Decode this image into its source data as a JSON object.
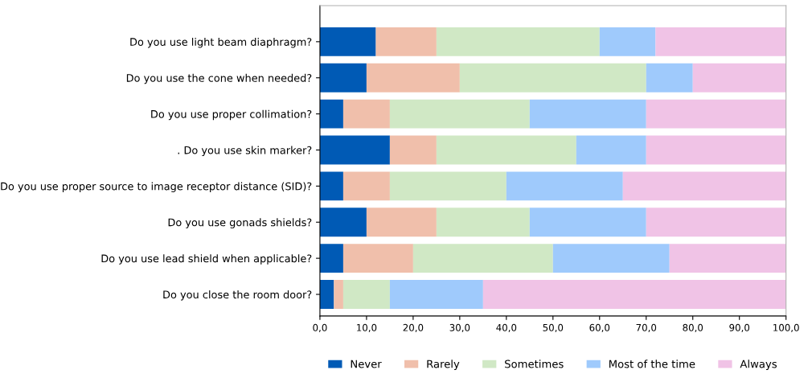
{
  "chart_data": {
    "type": "bar",
    "orientation": "horizontal",
    "stacked": true,
    "categories": [
      "Do you use light beam diaphragm?",
      "Do you use the cone when needed?",
      "Do you use proper collimation?",
      ". Do you use skin marker?",
      "Do you use proper source to image receptor distance (SID)?",
      "Do you use gonads shields?",
      "Do you use lead shield when applicable?",
      "Do you close the room door?"
    ],
    "series": [
      {
        "name": "Never",
        "color": "#005ab5",
        "values": [
          12,
          10,
          5,
          15,
          5,
          10,
          5,
          3
        ]
      },
      {
        "name": "Rarely",
        "color": "#f0bfab",
        "values": [
          13,
          20,
          10,
          10,
          10,
          15,
          15,
          2
        ]
      },
      {
        "name": "Sometimes",
        "color": "#d0e8c5",
        "values": [
          35,
          40,
          30,
          30,
          25,
          20,
          30,
          10
        ]
      },
      {
        "name": "Most of the time",
        "color": "#9fcafc",
        "values": [
          12,
          10,
          25,
          15,
          25,
          25,
          25,
          20
        ]
      },
      {
        "name": "Always",
        "color": "#f0c3e6",
        "values": [
          28,
          20,
          30,
          30,
          35,
          30,
          25,
          65
        ]
      }
    ],
    "xlim": [
      0,
      100
    ],
    "xticks": [
      {
        "value": 0,
        "label": "0,0"
      },
      {
        "value": 10,
        "label": "10,0"
      },
      {
        "value": 20,
        "label": "20,0"
      },
      {
        "value": 30,
        "label": "30,0"
      },
      {
        "value": 40,
        "label": "40,0"
      },
      {
        "value": 50,
        "label": "50,0"
      },
      {
        "value": 60,
        "label": "60,0"
      },
      {
        "value": 70,
        "label": "70,0"
      },
      {
        "value": 80,
        "label": "80,0"
      },
      {
        "value": 90,
        "label": "90,0"
      },
      {
        "value": 100,
        "label": "100,0"
      }
    ],
    "legend": "bottom",
    "grid": false
  }
}
